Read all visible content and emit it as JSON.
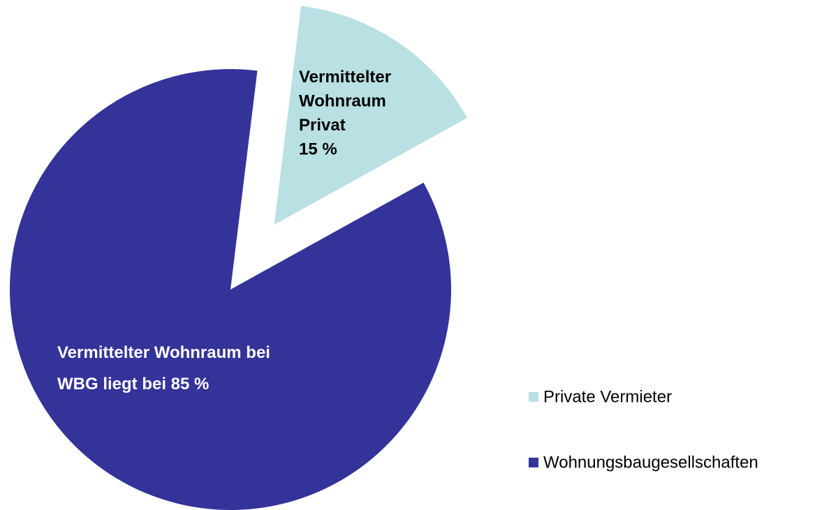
{
  "chart_data": {
    "type": "pie",
    "categories": [
      "Private Vermieter",
      "Wohnungsbaugesellschaften"
    ],
    "values": [
      15,
      85
    ],
    "value_labels": [
      "Vermittelter\nWohnraum\nPrivat\n15 %",
      "Vermittelter Wohnraum bei\nWBG liegt bei 85 %"
    ],
    "colors": [
      "#b9e0e3",
      "#343399"
    ],
    "label_colors": [
      "#000000",
      "#ffffff"
    ],
    "exploded": [
      true,
      false
    ],
    "legend": "right"
  }
}
